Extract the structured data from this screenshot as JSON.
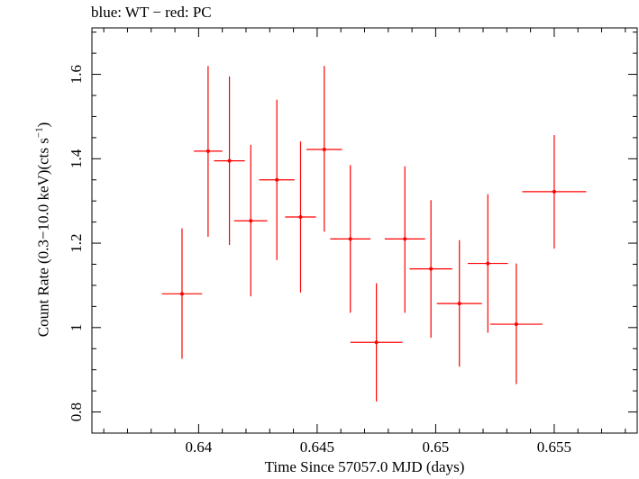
{
  "chart_data": {
    "type": "scatter",
    "title": "blue: WT − red: PC",
    "xlabel": "Time Since 57057.0 MJD (days)",
    "ylabel_main": "Count Rate (0.3−10.0 keV)(cts s",
    "ylabel_sup": "−1",
    "ylabel_end": ")",
    "xlim": [
      0.6355,
      0.6585
    ],
    "ylim": [
      0.75,
      1.71
    ],
    "xticks": [
      0.64,
      0.645,
      0.65,
      0.655
    ],
    "xtick_labels": [
      "0.64",
      "0.645",
      "0.65",
      "0.655"
    ],
    "yticks": [
      0.8,
      1.0,
      1.2,
      1.4,
      1.6
    ],
    "ytick_labels": [
      "0.8",
      "1",
      "1.2",
      "1.4",
      "1.6"
    ],
    "grid": false,
    "series": [
      {
        "color": "#ff0000",
        "points": [
          {
            "x": 0.6393,
            "y": 1.08,
            "xerr": 0.00085,
            "ylo": 0.926,
            "yhi": 1.235
          },
          {
            "x": 0.6404,
            "y": 1.418,
            "xerr": 0.0006,
            "ylo": 1.215,
            "yhi": 1.62
          },
          {
            "x": 0.6413,
            "y": 1.395,
            "xerr": 0.00065,
            "ylo": 1.196,
            "yhi": 1.595
          },
          {
            "x": 0.6422,
            "y": 1.253,
            "xerr": 0.0007,
            "ylo": 1.074,
            "yhi": 1.433
          },
          {
            "x": 0.6433,
            "y": 1.35,
            "xerr": 0.00075,
            "ylo": 1.16,
            "yhi": 1.54
          },
          {
            "x": 0.6443,
            "y": 1.262,
            "xerr": 0.00065,
            "ylo": 1.083,
            "yhi": 1.441
          },
          {
            "x": 0.6453,
            "y": 1.422,
            "xerr": 0.00075,
            "ylo": 1.227,
            "yhi": 1.62
          },
          {
            "x": 0.6464,
            "y": 1.21,
            "xerr": 0.00085,
            "ylo": 1.035,
            "yhi": 1.385
          },
          {
            "x": 0.6475,
            "y": 0.965,
            "xerr": 0.0011,
            "ylo": 0.825,
            "yhi": 1.105
          },
          {
            "x": 0.6487,
            "y": 1.21,
            "xerr": 0.00085,
            "ylo": 1.035,
            "yhi": 1.382
          },
          {
            "x": 0.6498,
            "y": 1.139,
            "xerr": 0.0009,
            "ylo": 0.976,
            "yhi": 1.302
          },
          {
            "x": 0.651,
            "y": 1.057,
            "xerr": 0.00095,
            "ylo": 0.907,
            "yhi": 1.207
          },
          {
            "x": 0.6522,
            "y": 1.152,
            "xerr": 0.00085,
            "ylo": 0.988,
            "yhi": 1.316
          },
          {
            "x": 0.6534,
            "y": 1.008,
            "xerr": 0.0011,
            "ylo": 0.866,
            "yhi": 1.152
          },
          {
            "x": 0.655,
            "y": 1.322,
            "xerr": 0.00135,
            "ylo": 1.187,
            "yhi": 1.456
          }
        ]
      }
    ]
  }
}
